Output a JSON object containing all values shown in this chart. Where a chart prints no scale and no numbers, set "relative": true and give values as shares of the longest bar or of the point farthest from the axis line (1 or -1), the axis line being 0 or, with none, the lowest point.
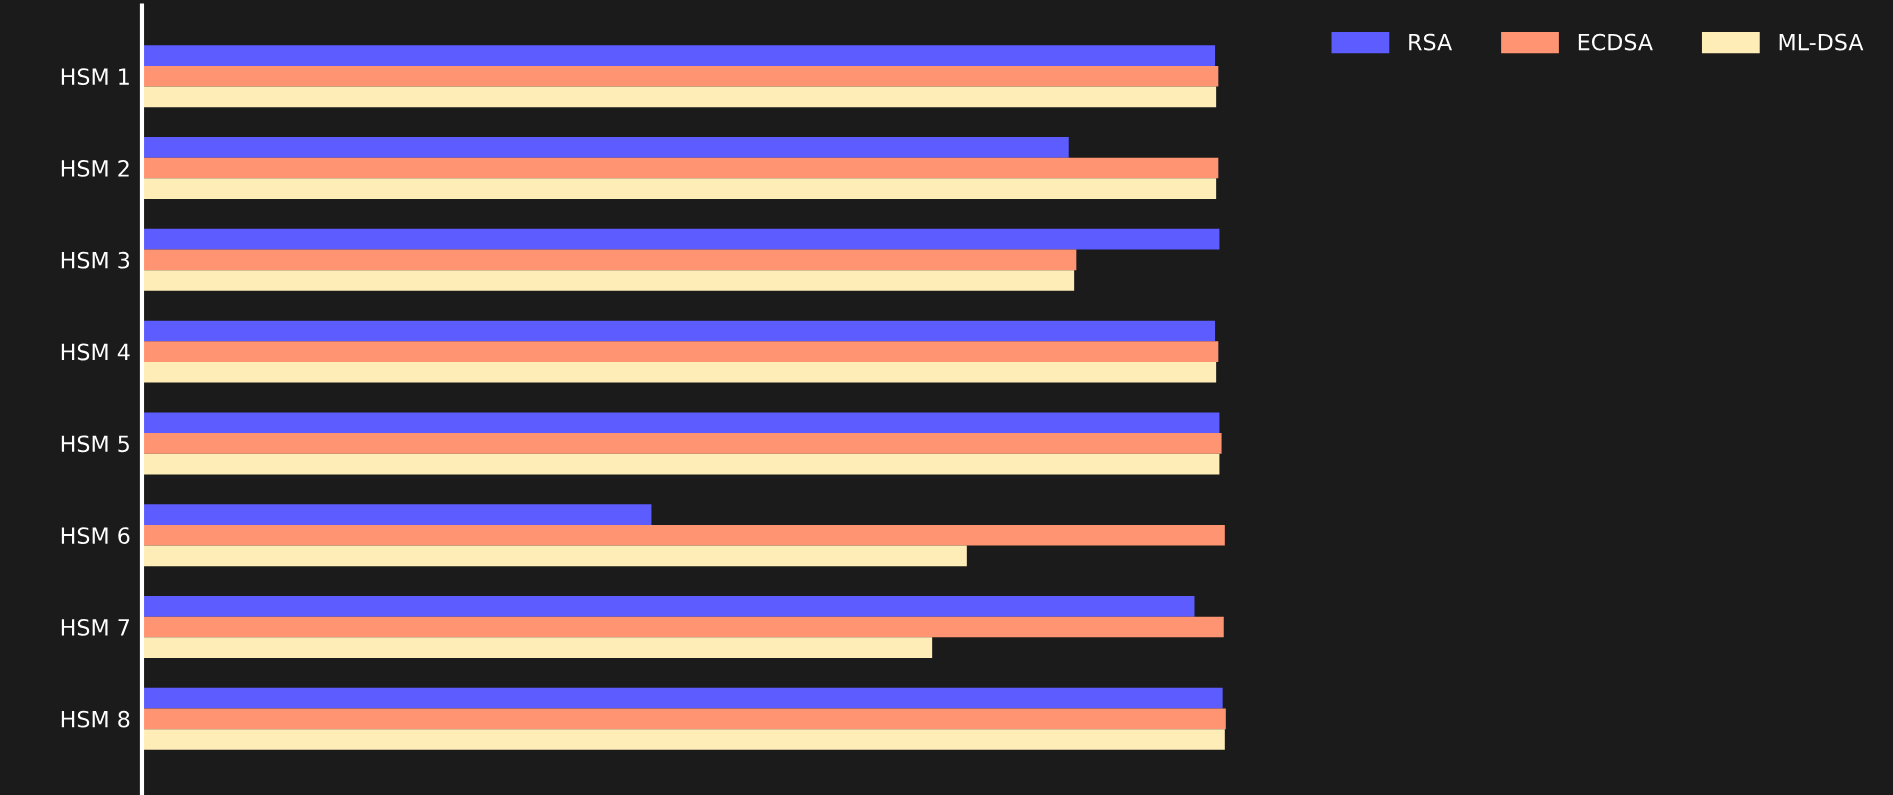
{
  "chart_data": {
    "type": "bar",
    "orientation": "horizontal",
    "relative": true,
    "categories": [
      "HSM 1",
      "HSM 2",
      "HSM 3",
      "HSM 4",
      "HSM 5",
      "HSM 6",
      "HSM 7",
      "HSM 8"
    ],
    "series": [
      {
        "name": "RSA",
        "color": "#5c5cff",
        "values": [
          0.99,
          0.855,
          0.994,
          0.99,
          0.994,
          0.47,
          0.971,
          0.997
        ]
      },
      {
        "name": "ECDSA",
        "color": "#ff9473",
        "values": [
          0.993,
          0.993,
          0.862,
          0.993,
          0.996,
          0.999,
          0.998,
          1.0
        ]
      },
      {
        "name": "ML-DSA",
        "color": "#ffedb8",
        "values": [
          0.991,
          0.991,
          0.86,
          0.991,
          0.994,
          0.761,
          0.729,
          0.999
        ]
      }
    ],
    "legend": "top right",
    "grid": false
  }
}
